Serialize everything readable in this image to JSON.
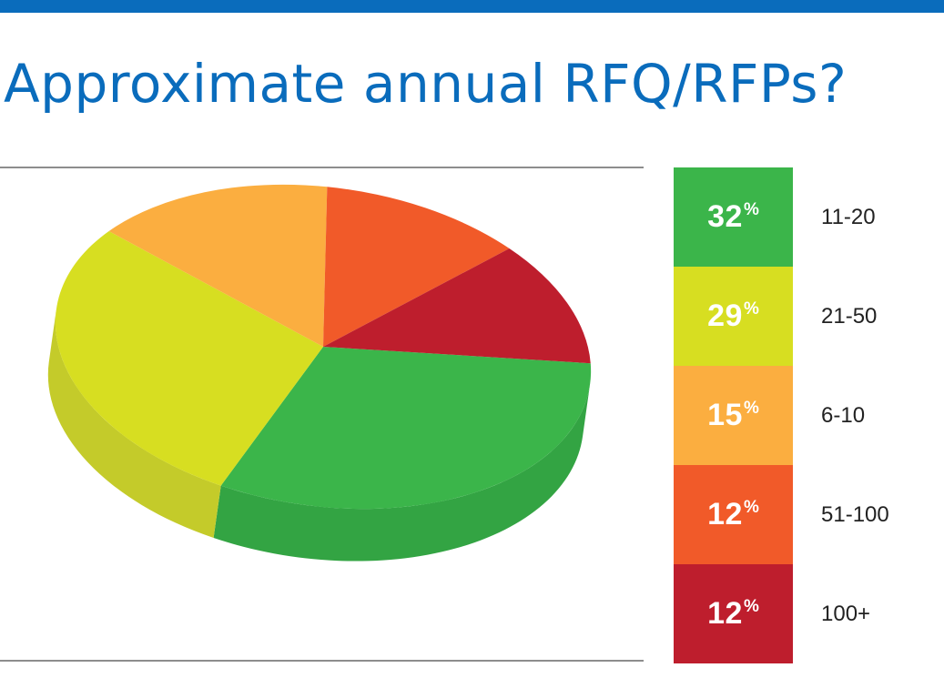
{
  "title": "Approximate annual RFQ/RFPs?",
  "chart_data": {
    "type": "pie",
    "title": "Approximate annual RFQ/RFPs?",
    "unit": "%",
    "slices": [
      {
        "label": "11-20",
        "value": 32,
        "color": "#3bb54a",
        "side_color": "#33a443"
      },
      {
        "label": "21-50",
        "value": 29,
        "color": "#d7de21",
        "side_color": "#c4cb2a"
      },
      {
        "label": "6-10",
        "value": 15,
        "color": "#fbae40",
        "side_color": "#e29a34"
      },
      {
        "label": "51-100",
        "value": 12,
        "color": "#f15a29",
        "side_color": "#d24c22"
      },
      {
        "label": "100+",
        "value": 12,
        "color": "#be1e2d",
        "side_color": "#a31a27"
      }
    ]
  },
  "colors": {
    "accent": "#0a6cbc",
    "rule": "#8d8d8d"
  }
}
